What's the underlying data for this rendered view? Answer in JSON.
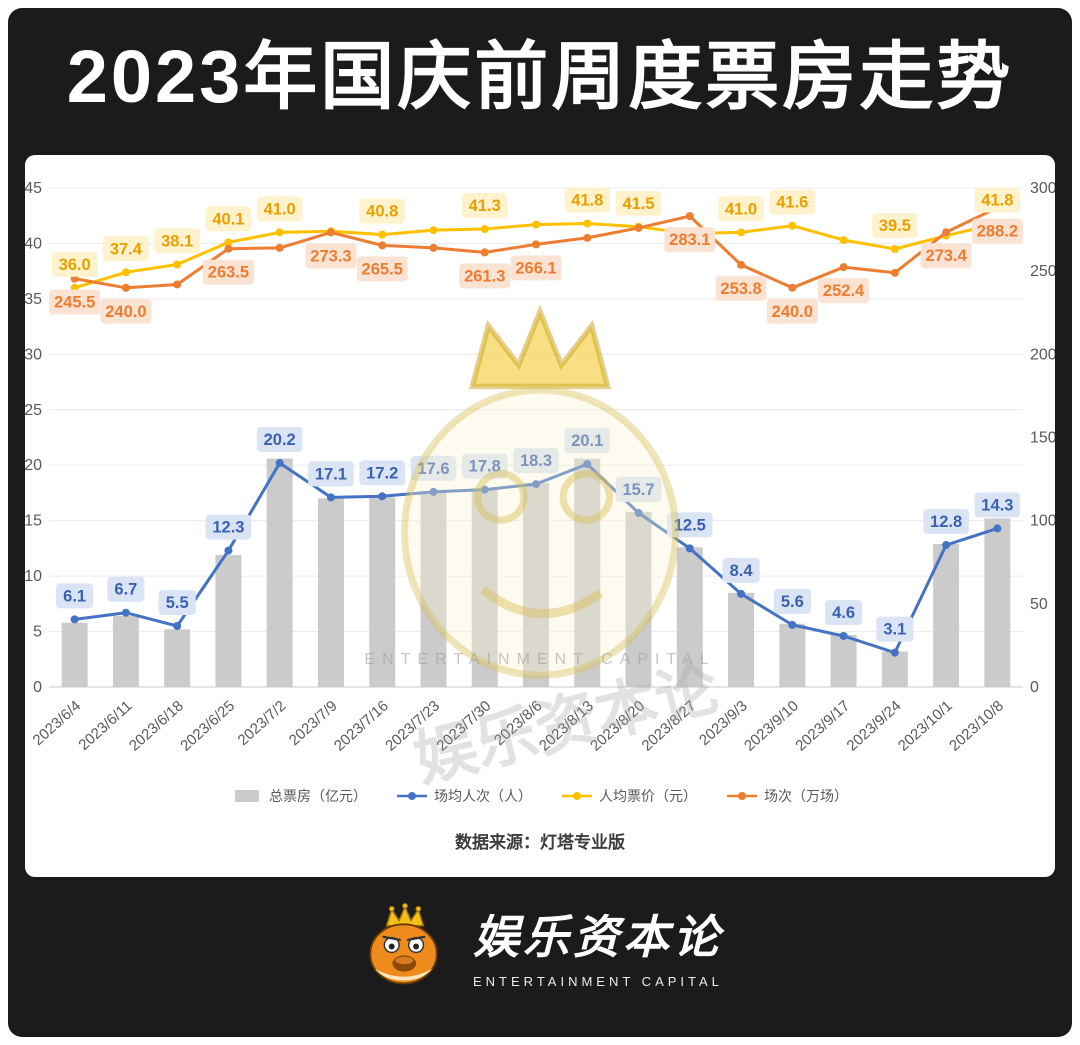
{
  "title": "2023年国庆前周度票房走势",
  "source": "数据来源：灯塔专业版",
  "watermark": {
    "cn": "娱乐资本论",
    "en": "ENTERTAINMENT CAPITAL"
  },
  "brand": {
    "name": "娱乐资本论",
    "subtitle": "ENTERTAINMENT CAPITAL"
  },
  "colors": {
    "panel_bg": "#1b1b1b",
    "card_bg": "#ffffff",
    "axis_text": "#595959",
    "grid": "#ececec"
  },
  "chart_data": {
    "type": "bar",
    "title": "2023年国庆前周度票房走势",
    "categories": [
      "2023/6/4",
      "2023/6/11",
      "2023/6/18",
      "2023/6/25",
      "2023/7/2",
      "2023/7/9",
      "2023/7/16",
      "2023/7/23",
      "2023/7/30",
      "2023/8/6",
      "2023/8/13",
      "2023/8/20",
      "2023/8/27",
      "2023/9/3",
      "2023/9/10",
      "2023/9/17",
      "2023/9/24",
      "2023/10/1",
      "2023/10/8"
    ],
    "left_axis": {
      "min": 0,
      "max": 45,
      "step": 5
    },
    "right_axis": {
      "min": 0,
      "max": 300,
      "step": 50
    },
    "grid": true,
    "legend_position": "bottom",
    "series": [
      {
        "key": "total-boxoffice",
        "name": "总票房（亿元）",
        "type": "bar",
        "axis": "left",
        "color": "#cbcbcb",
        "values": [
          5.8,
          6.4,
          5.2,
          11.9,
          20.6,
          17.0,
          17.1,
          17.5,
          17.9,
          18.4,
          20.6,
          15.8,
          12.6,
          8.5,
          5.7,
          4.7,
          3.2,
          12.9,
          15.2
        ]
      },
      {
        "key": "avg-attendance",
        "name": "场均人次（人）",
        "type": "line",
        "axis": "left",
        "z": 3,
        "color": "#4472c4",
        "label_bg": "#dbe4f5",
        "label_fg": "#3a62b0",
        "label_side": "above",
        "values": [
          6.1,
          6.7,
          5.5,
          12.3,
          20.2,
          17.1,
          17.2,
          17.6,
          17.8,
          18.3,
          20.1,
          15.7,
          12.5,
          8.4,
          5.6,
          4.6,
          3.1,
          12.8,
          14.3
        ],
        "labeled": [
          true,
          true,
          true,
          true,
          true,
          true,
          true,
          true,
          true,
          true,
          true,
          true,
          true,
          true,
          true,
          true,
          true,
          true,
          true
        ]
      },
      {
        "key": "avg-ticket-price",
        "name": "人均票价（元）",
        "type": "line",
        "axis": "left",
        "z": 1,
        "color": "#ffc000",
        "label_bg": "#fff2cc",
        "label_fg": "#e8a000",
        "label_side": "above",
        "values": [
          36.0,
          37.4,
          38.1,
          40.1,
          41.0,
          41.1,
          40.8,
          41.2,
          41.3,
          41.7,
          41.8,
          41.5,
          40.9,
          41.0,
          41.6,
          40.3,
          39.5,
          40.7,
          41.8
        ],
        "labeled": [
          true,
          true,
          true,
          true,
          true,
          false,
          true,
          false,
          true,
          false,
          true,
          true,
          false,
          true,
          true,
          false,
          true,
          false,
          true
        ]
      },
      {
        "key": "sessions",
        "name": "场次（万场）",
        "type": "line",
        "axis": "right",
        "z": 2,
        "color": "#ed7d31",
        "label_bg": "#fbe3d3",
        "label_fg": "#ed7d31",
        "label_side": "below",
        "values": [
          245.5,
          240.0,
          242.0,
          263.5,
          264.0,
          273.3,
          265.5,
          264.0,
          261.3,
          266.1,
          270.0,
          276.0,
          283.1,
          253.8,
          240.0,
          252.4,
          249.0,
          273.4,
          288.2
        ],
        "labeled": [
          true,
          true,
          false,
          true,
          false,
          true,
          true,
          false,
          true,
          true,
          false,
          false,
          true,
          true,
          true,
          true,
          false,
          true,
          true
        ]
      }
    ]
  }
}
